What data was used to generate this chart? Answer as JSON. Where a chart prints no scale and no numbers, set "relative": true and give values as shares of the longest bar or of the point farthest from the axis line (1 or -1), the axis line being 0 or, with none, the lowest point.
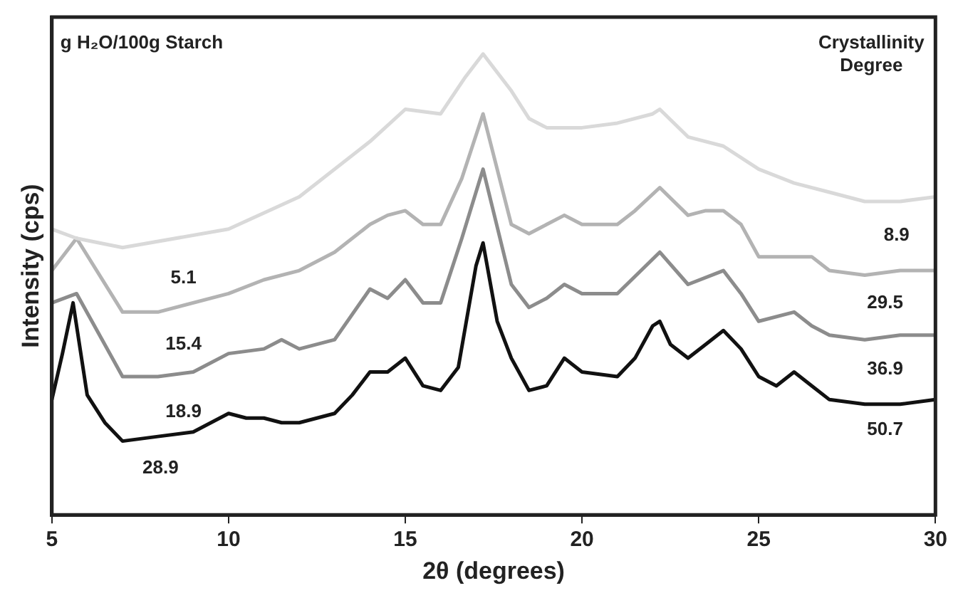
{
  "chart_data": {
    "type": "line",
    "xlabel": "2θ (degrees)",
    "ylabel": "Intensity (cps)",
    "relative": true,
    "xlim": [
      5,
      30
    ],
    "xticks": [
      5,
      10,
      15,
      20,
      25,
      30
    ],
    "grid": false,
    "legend": false,
    "series": [
      {
        "color": "#d9d9d9",
        "x": [
          5,
          5.7,
          7,
          10,
          12,
          14,
          15,
          16,
          16.7,
          17.2,
          18,
          18.5,
          19,
          20,
          21,
          22,
          22.2,
          23,
          24,
          25,
          26,
          27,
          28,
          29,
          30
        ],
        "values": [
          0.62,
          0.6,
          0.58,
          0.62,
          0.69,
          0.81,
          0.88,
          0.87,
          0.95,
          1,
          0.92,
          0.86,
          0.84,
          0.84,
          0.85,
          0.87,
          0.88,
          0.82,
          0.8,
          0.75,
          0.72,
          0.7,
          0.68,
          0.68,
          0.69
        ]
      },
      {
        "color": "#b3b3b3",
        "x": [
          5,
          5.7,
          7,
          8,
          10,
          11,
          12,
          13,
          14,
          14.5,
          15,
          15.5,
          16,
          16.6,
          17.2,
          18,
          18.5,
          19,
          19.5,
          20,
          21,
          21.5,
          22.2,
          23,
          23.5,
          24,
          24.5,
          25,
          26,
          26.5,
          27,
          28,
          29,
          30
        ],
        "values": [
          0.53,
          0.6,
          0.44,
          0.44,
          0.48,
          0.51,
          0.53,
          0.57,
          0.63,
          0.65,
          0.66,
          0.63,
          0.63,
          0.73,
          0.87,
          0.63,
          0.61,
          0.63,
          0.65,
          0.63,
          0.63,
          0.66,
          0.71,
          0.65,
          0.66,
          0.66,
          0.63,
          0.56,
          0.56,
          0.56,
          0.53,
          0.52,
          0.53,
          0.53
        ]
      },
      {
        "color": "#8c8c8c",
        "x": [
          5,
          5.7,
          7,
          8,
          9,
          10,
          11,
          11.5,
          12,
          13,
          14,
          14.5,
          15,
          15.5,
          16,
          16.6,
          17.2,
          18,
          18.5,
          19,
          19.5,
          20,
          21,
          22.2,
          23,
          24,
          24.5,
          25,
          26,
          26.5,
          27,
          28,
          29,
          30
        ],
        "values": [
          0.46,
          0.48,
          0.3,
          0.3,
          0.31,
          0.35,
          0.36,
          0.38,
          0.36,
          0.38,
          0.49,
          0.47,
          0.51,
          0.46,
          0.46,
          0.6,
          0.75,
          0.5,
          0.45,
          0.47,
          0.5,
          0.48,
          0.48,
          0.57,
          0.5,
          0.53,
          0.48,
          0.42,
          0.44,
          0.41,
          0.39,
          0.38,
          0.39,
          0.39
        ]
      },
      {
        "color": "#111111",
        "x": [
          5,
          5.3,
          5.6,
          6,
          6.5,
          7,
          8,
          9,
          10,
          10.5,
          11,
          11.5,
          12,
          13,
          13.5,
          14,
          14.5,
          15,
          15.5,
          16,
          16.5,
          17,
          17.2,
          17.6,
          18,
          18.5,
          19,
          19.5,
          20,
          21,
          21.5,
          22,
          22.2,
          22.5,
          23,
          23.5,
          24,
          24.5,
          25,
          25.5,
          26,
          26.5,
          27,
          28,
          29,
          30
        ],
        "values": [
          0.25,
          0.35,
          0.46,
          0.26,
          0.2,
          0.16,
          0.17,
          0.18,
          0.22,
          0.21,
          0.21,
          0.2,
          0.2,
          0.22,
          0.26,
          0.31,
          0.31,
          0.34,
          0.28,
          0.27,
          0.32,
          0.54,
          0.59,
          0.42,
          0.34,
          0.27,
          0.28,
          0.34,
          0.31,
          0.3,
          0.34,
          0.41,
          0.42,
          0.37,
          0.34,
          0.37,
          0.4,
          0.36,
          0.3,
          0.28,
          0.31,
          0.28,
          0.25,
          0.24,
          0.24,
          0.25
        ]
      }
    ],
    "annotations": [
      "g H₂O/100g Starch",
      "Crystallinity\nDegree",
      "5.1",
      "15.4",
      "18.9",
      "28.9",
      "8.9",
      "29.5",
      "36.9",
      "50.7"
    ]
  }
}
